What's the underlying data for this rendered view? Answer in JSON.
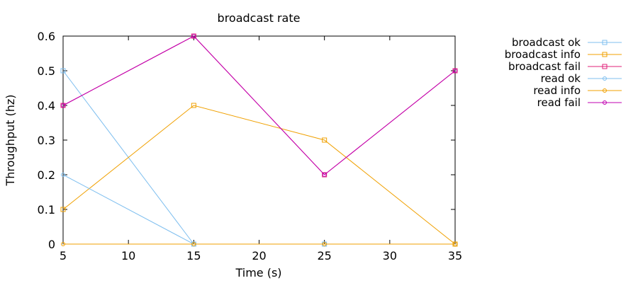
{
  "chart_data": {
    "type": "line",
    "title": "broadcast rate",
    "xlabel": "Time (s)",
    "ylabel": "Throughput (hz)",
    "xlim": [
      5,
      35
    ],
    "ylim": [
      0,
      0.6
    ],
    "xticks": [
      5,
      10,
      15,
      20,
      25,
      30,
      35
    ],
    "yticks": [
      0,
      0.1,
      0.2,
      0.3,
      0.4,
      0.5,
      0.6
    ],
    "xtick_labels": [
      "5",
      "10",
      "15",
      "20",
      "25",
      "30",
      "35"
    ],
    "ytick_labels": [
      "0",
      "0.1",
      "0.2",
      "0.3",
      "0.4",
      "0.5",
      "0.6"
    ],
    "grid": false,
    "legend_position": "outside-right",
    "x": [
      5,
      15,
      25,
      35
    ],
    "series": [
      {
        "name": "broadcast ok",
        "values": [
          0.5,
          0,
          0,
          0
        ],
        "color": "#7fbfef",
        "marker": "square"
      },
      {
        "name": "broadcast info",
        "values": [
          0.1,
          0.4,
          0.3,
          0
        ],
        "color": "#f0a000",
        "marker": "square"
      },
      {
        "name": "broadcast fail",
        "values": [
          0.4,
          0.6,
          0.2,
          0.5
        ],
        "color": "#e0207a",
        "marker": "square"
      },
      {
        "name": "read ok",
        "values": [
          0.2,
          0,
          0,
          0
        ],
        "color": "#7fbfef",
        "marker": "circle"
      },
      {
        "name": "read info",
        "values": [
          0,
          0,
          0,
          0
        ],
        "color": "#f0a000",
        "marker": "circle"
      },
      {
        "name": "read fail",
        "values": [
          0.4,
          0.6,
          0.2,
          0.5
        ],
        "color": "#c000b0",
        "marker": "circle"
      }
    ]
  }
}
